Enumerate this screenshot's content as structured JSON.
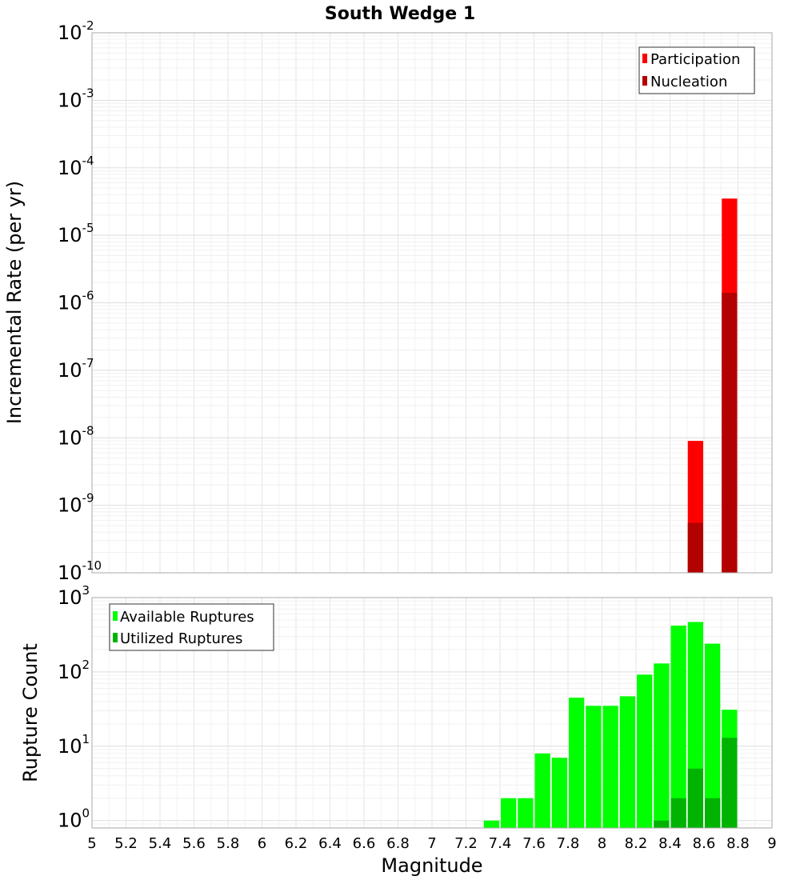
{
  "chart_data": [
    {
      "type": "bar",
      "panel": "top",
      "title": "South Wedge 1",
      "ylabel": "Incremental Rate (per yr)",
      "yscale": "log",
      "ylim_exp": [
        -10,
        -2
      ],
      "ytick_exp": [
        -10,
        -9,
        -8,
        -7,
        -6,
        -5,
        -4,
        -3,
        -2
      ],
      "legend_position": "top-right",
      "series": [
        {
          "name": "Participation",
          "color": "#ff0000",
          "points": [
            {
              "x": 8.55,
              "y": 9e-09
            },
            {
              "x": 8.75,
              "y": 3.5e-05
            }
          ]
        },
        {
          "name": "Nucleation",
          "color": "#b30000",
          "points": [
            {
              "x": 8.55,
              "y": 5.5e-10
            },
            {
              "x": 8.75,
              "y": 1.4e-06
            }
          ]
        }
      ]
    },
    {
      "type": "bar",
      "panel": "bottom",
      "ylabel": "Rupture Count",
      "yscale": "log",
      "ylim_exp": [
        -0.1,
        3
      ],
      "ytick_exp": [
        0,
        1,
        2,
        3
      ],
      "legend_position": "top-left",
      "series": [
        {
          "name": "Available Ruptures",
          "color": "#00ff00",
          "points": [
            {
              "x": 7.35,
              "y": 1
            },
            {
              "x": 7.45,
              "y": 2
            },
            {
              "x": 7.55,
              "y": 2
            },
            {
              "x": 7.65,
              "y": 8
            },
            {
              "x": 7.75,
              "y": 7
            },
            {
              "x": 7.85,
              "y": 45
            },
            {
              "x": 7.95,
              "y": 35
            },
            {
              "x": 8.05,
              "y": 35
            },
            {
              "x": 8.15,
              "y": 47
            },
            {
              "x": 8.25,
              "y": 92
            },
            {
              "x": 8.35,
              "y": 130
            },
            {
              "x": 8.45,
              "y": 420
            },
            {
              "x": 8.55,
              "y": 470
            },
            {
              "x": 8.65,
              "y": 240
            },
            {
              "x": 8.75,
              "y": 31
            }
          ]
        },
        {
          "name": "Utilized Ruptures",
          "color": "#00b300",
          "points": [
            {
              "x": 8.35,
              "y": 1
            },
            {
              "x": 8.45,
              "y": 2
            },
            {
              "x": 8.55,
              "y": 5
            },
            {
              "x": 8.65,
              "y": 2
            },
            {
              "x": 8.75,
              "y": 13
            }
          ]
        }
      ]
    }
  ],
  "xaxis": {
    "label": "Magnitude",
    "xlim": [
      5,
      9
    ],
    "bin_width": 0.1,
    "ticks": [
      "5",
      "5.2",
      "5.4",
      "5.6",
      "5.8",
      "6",
      "6.2",
      "6.4",
      "6.6",
      "6.8",
      "7",
      "7.2",
      "7.4",
      "7.6",
      "7.8",
      "8",
      "8.2",
      "8.4",
      "8.6",
      "8.8",
      "9"
    ]
  }
}
